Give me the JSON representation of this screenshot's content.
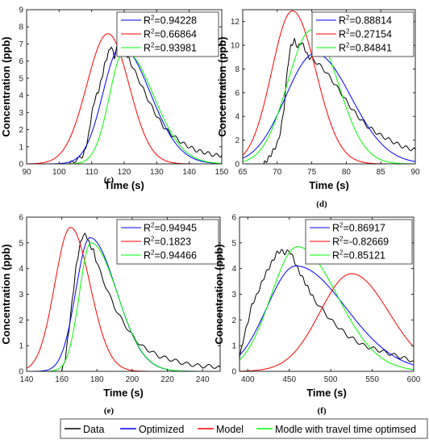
{
  "chart_data": [
    {
      "id": "c",
      "type": "line",
      "caption": "(c)",
      "xlabel": "Time (s)",
      "ylabel": "Concentration (ppb)",
      "xlim": [
        90,
        150
      ],
      "ylim": [
        0,
        9
      ],
      "xticks": [
        90,
        100,
        110,
        120,
        130,
        140,
        150
      ],
      "yticks": [
        0,
        1,
        2,
        3,
        4,
        5,
        6,
        7,
        8,
        9
      ],
      "legend": {
        "placement": "top-right",
        "entries": [
          {
            "series": "optimized",
            "text": "=0.94228"
          },
          {
            "series": "model",
            "text": "=0.66864"
          },
          {
            "series": "travel",
            "text": "=0.93981"
          }
        ]
      },
      "series": [
        {
          "key": "data",
          "kind": "measured",
          "x": [
            103,
            105,
            107,
            108,
            109,
            110,
            111,
            112,
            113,
            114,
            115,
            116,
            117,
            118,
            119,
            120,
            121,
            122,
            124,
            126,
            128,
            130,
            132,
            134,
            136,
            138,
            140,
            142,
            144,
            146,
            148,
            150
          ],
          "values": [
            0,
            0.2,
            0.4,
            0.8,
            1.6,
            2.9,
            3.8,
            4.2,
            4.9,
            5.8,
            6.4,
            6.9,
            6.2,
            7.0,
            6.7,
            6.5,
            6.3,
            5.9,
            5.1,
            4.3,
            3.5,
            2.8,
            2.2,
            1.8,
            1.5,
            1.2,
            1.0,
            0.8,
            0.7,
            0.6,
            0.5,
            0.5
          ]
        },
        {
          "key": "optimized",
          "kind": "model",
          "peak": 6.85,
          "center": 119,
          "rise": 5.5,
          "fall": 9
        },
        {
          "key": "model",
          "kind": "model",
          "peak": 7.6,
          "center": 115,
          "rise": 6.5,
          "fall": 6.5
        },
        {
          "key": "travel",
          "kind": "model",
          "peak": 6.6,
          "center": 120,
          "rise": 4.5,
          "fall": 9
        }
      ]
    },
    {
      "id": "d",
      "type": "line",
      "caption": "(d)",
      "xlabel": "Time (s)",
      "ylabel": "Concentration (ppb)",
      "xlim": [
        65,
        90
      ],
      "ylim": [
        0,
        13
      ],
      "xticks": [
        65,
        70,
        75,
        80,
        85,
        90
      ],
      "yticks": [
        0,
        2,
        4,
        6,
        8,
        10,
        12
      ],
      "legend": {
        "placement": "top-right",
        "entries": [
          {
            "series": "optimized",
            "text": "=0.88814"
          },
          {
            "series": "model",
            "text": "=0.27154"
          },
          {
            "series": "travel",
            "text": "=0.84841"
          }
        ]
      },
      "series": [
        {
          "key": "data",
          "kind": "measured",
          "x": [
            68,
            68.5,
            69,
            69.5,
            70,
            70.5,
            71,
            71.5,
            72,
            72.5,
            73,
            73.5,
            74,
            74.5,
            75,
            76,
            77,
            78,
            79,
            80,
            81,
            82,
            83,
            84,
            85,
            86,
            87,
            88,
            89,
            90
          ],
          "values": [
            0,
            0.3,
            0.7,
            1.2,
            1.7,
            2.8,
            4.8,
            8.2,
            10.0,
            10.4,
            9.8,
            10.3,
            9.7,
            9.0,
            8.9,
            8.4,
            7.8,
            7.0,
            6.2,
            5.3,
            4.5,
            3.8,
            3.2,
            2.8,
            2.4,
            2.1,
            1.8,
            1.5,
            1.3,
            1.2
          ]
        },
        {
          "key": "optimized",
          "kind": "model",
          "peak": 9.3,
          "center": 75.5,
          "rise": 4.3,
          "fall": 5.2
        },
        {
          "key": "model",
          "kind": "model",
          "peak": 12.9,
          "center": 72.2,
          "rise": 3.0,
          "fall": 3.4
        },
        {
          "key": "travel",
          "kind": "model",
          "peak": 11.3,
          "center": 75,
          "rise": 3.5,
          "fall": 3.8
        }
      ]
    },
    {
      "id": "e",
      "type": "line",
      "caption": "(e)",
      "xlabel": "Time (s)",
      "ylabel": "Concentration (ppb)",
      "xlim": [
        140,
        250
      ],
      "ylim": [
        0,
        6
      ],
      "xticks": [
        140,
        160,
        180,
        200,
        220,
        240
      ],
      "yticks": [
        0,
        1,
        2,
        3,
        4,
        5,
        6
      ],
      "legend": {
        "placement": "top-right",
        "entries": [
          {
            "series": "optimized",
            "text": "=0.94945"
          },
          {
            "series": "model",
            "text": "=0.1823"
          },
          {
            "series": "travel",
            "text": "=0.94466"
          }
        ]
      },
      "series": [
        {
          "key": "data",
          "kind": "measured",
          "x": [
            160,
            162,
            164,
            166,
            168,
            170,
            172,
            174,
            176,
            178,
            180,
            185,
            190,
            195,
            200,
            205,
            210,
            215,
            220,
            225,
            230,
            235,
            240,
            245,
            250
          ],
          "values": [
            0,
            0.5,
            1.6,
            2.8,
            4.0,
            4.8,
            5.3,
            5.3,
            4.9,
            4.7,
            4.2,
            3.3,
            2.5,
            1.9,
            1.4,
            1.0,
            0.8,
            0.6,
            0.5,
            0.4,
            0.3,
            0.25,
            0.2,
            0.2,
            0.15
          ]
        },
        {
          "key": "optimized",
          "kind": "model",
          "peak": 5.2,
          "center": 176,
          "rise": 8,
          "fall": 15
        },
        {
          "key": "model",
          "kind": "model",
          "peak": 5.6,
          "center": 165,
          "rise": 9,
          "fall": 11
        },
        {
          "key": "travel",
          "kind": "model",
          "peak": 5.0,
          "center": 176.5,
          "rise": 6.5,
          "fall": 15
        }
      ]
    },
    {
      "id": "f",
      "type": "line",
      "caption": "(f)",
      "xlabel": "Time (s)",
      "ylabel": "Concentration (ppb)",
      "xlim": [
        390,
        600
      ],
      "ylim": [
        0,
        6
      ],
      "xticks": [
        400,
        450,
        500,
        550,
        600
      ],
      "yticks": [
        0,
        1,
        2,
        3,
        4,
        5,
        6
      ],
      "legend": {
        "placement": "top-right",
        "entries": [
          {
            "series": "optimized",
            "text": "=0.86917"
          },
          {
            "series": "model",
            "text": "=-0.82669"
          },
          {
            "series": "travel",
            "text": "=0.85121"
          }
        ]
      },
      "series": [
        {
          "key": "data",
          "kind": "measured",
          "x": [
            390,
            395,
            400,
            405,
            410,
            415,
            420,
            425,
            430,
            435,
            440,
            445,
            450,
            455,
            460,
            465,
            470,
            475,
            480,
            490,
            500,
            510,
            520,
            530,
            540,
            550,
            560,
            570,
            580,
            590,
            600
          ],
          "values": [
            0.5,
            1.3,
            1.9,
            2.6,
            2.9,
            3.3,
            3.7,
            4.0,
            4.3,
            4.6,
            4.7,
            4.6,
            4.7,
            4.4,
            4.0,
            3.7,
            3.4,
            3.1,
            2.8,
            2.4,
            2.0,
            1.7,
            1.4,
            1.2,
            1.0,
            0.9,
            0.8,
            0.7,
            0.6,
            0.5,
            0.4
          ]
        },
        {
          "key": "optimized",
          "kind": "model",
          "peak": 4.1,
          "center": 458,
          "rise": 35,
          "fall": 60
        },
        {
          "key": "model",
          "kind": "model",
          "peak": 3.8,
          "center": 525,
          "rise": 38,
          "fall": 45
        },
        {
          "key": "travel",
          "kind": "model",
          "peak": 4.85,
          "center": 460,
          "rise": 32,
          "fall": 48
        }
      ]
    }
  ],
  "series_styles": {
    "data": {
      "label": "Data",
      "color": "#000000"
    },
    "optimized": {
      "label": "Optimized",
      "color": "#0000ff"
    },
    "model": {
      "label": "Model",
      "color": "#ff0000"
    },
    "travel": {
      "label": "Modle with travel time optimsed",
      "color": "#00ff00"
    }
  },
  "legend_r2_symbol": "R",
  "legend_r2_superscript": "2"
}
